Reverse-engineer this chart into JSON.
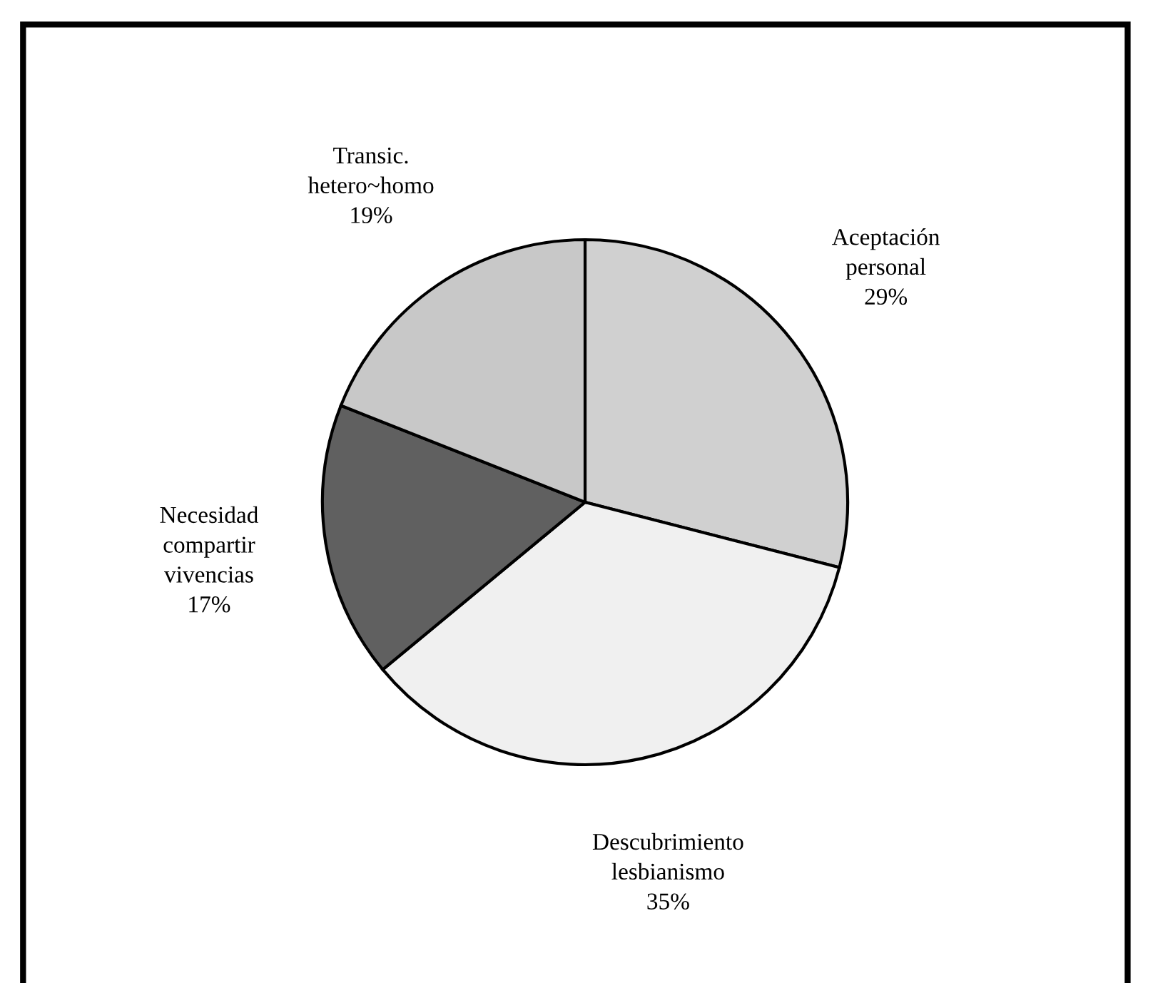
{
  "chart_data": {
    "type": "pie",
    "categories": [
      "Aceptación\npersonal",
      "Descubrimiento\nlesbianismo",
      "Necesidad\ncompartir\nvivencias",
      "Transic.\nhetero~homo"
    ],
    "values": [
      29,
      35,
      17,
      19
    ],
    "value_labels": [
      "29%",
      "35%",
      "17%",
      "19%"
    ],
    "colors": [
      "#d0d0d0",
      "#f0f0f0",
      "#606060",
      "#c8c8c8"
    ],
    "legend": false
  }
}
